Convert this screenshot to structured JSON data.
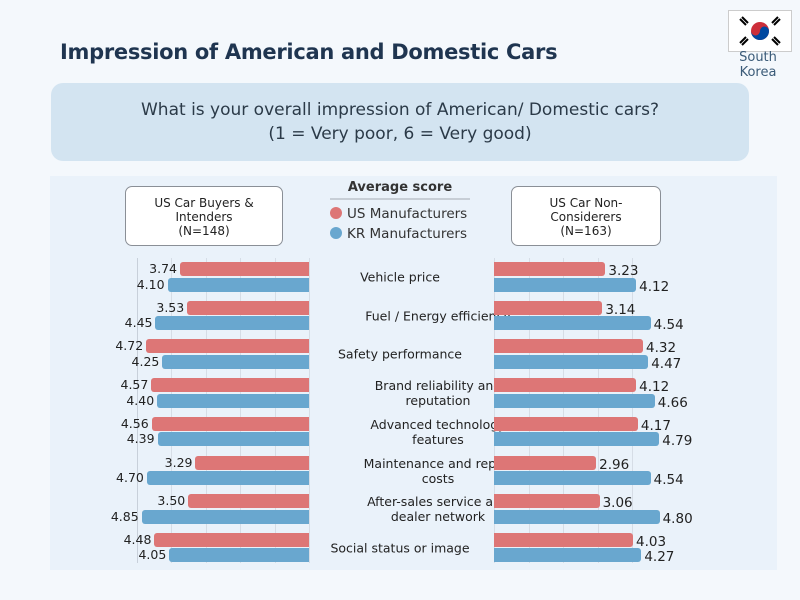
{
  "header": {
    "title": "Impression of American and Domestic Cars",
    "country": "South Korea"
  },
  "question": {
    "line1": "What is your overall impression of American/ Domestic cars?",
    "line2": "(1 = Very poor, 6 = Very good)"
  },
  "colors": {
    "us": "#dd7676",
    "kr": "#69a7cf"
  },
  "chart_data": {
    "type": "bar",
    "orientation": "horizontal",
    "title": "Average score",
    "categories": [
      "Vehicle price",
      "Fuel / Energy efficiency",
      "Safety performance",
      "Brand reliability and reputation",
      "Advanced technology features",
      "Maintenance and repair costs",
      "After-sales service and dealer network",
      "Social status or image"
    ],
    "legend": [
      "US Manufacturers",
      "KR Manufacturers"
    ],
    "panels": [
      {
        "label": "US Car Buyers & Intenders",
        "n": "(N=148)",
        "series": [
          {
            "name": "US Manufacturers",
            "values": [
              3.74,
              3.53,
              4.72,
              4.57,
              4.56,
              3.29,
              3.5,
              4.48
            ]
          },
          {
            "name": "KR Manufacturers",
            "values": [
              4.1,
              4.45,
              4.25,
              4.4,
              4.39,
              4.7,
              4.85,
              4.05
            ]
          }
        ]
      },
      {
        "label": "US Car Non-Considerers",
        "n": "(N=163)",
        "series": [
          {
            "name": "US Manufacturers",
            "values": [
              3.23,
              3.14,
              4.32,
              4.12,
              4.17,
              2.96,
              3.06,
              4.03
            ]
          },
          {
            "name": "KR Manufacturers",
            "values": [
              4.12,
              4.54,
              4.47,
              4.66,
              4.79,
              4.54,
              4.8,
              4.27
            ]
          }
        ]
      }
    ],
    "xlim": [
      0,
      5
    ],
    "grid": true,
    "legend_position": "top-center"
  }
}
